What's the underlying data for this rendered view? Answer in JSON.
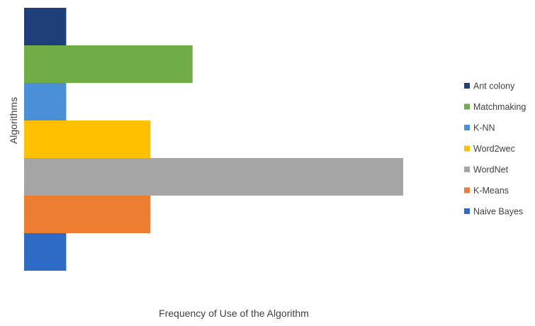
{
  "chart_data": {
    "type": "bar",
    "orientation": "horizontal",
    "title": "",
    "xlabel": "Frequency of Use of the Algorithm",
    "ylabel": "Algorithms",
    "xlim": [
      0,
      9
    ],
    "grid": false,
    "legend_position": "right",
    "series": [
      {
        "name": "Ant colony",
        "value": 1,
        "color": "#1f3f7a"
      },
      {
        "name": "Matchmaking",
        "value": 4,
        "color": "#70ad47"
      },
      {
        "name": "K-NN",
        "value": 1,
        "color": "#4a90d9"
      },
      {
        "name": "Word2wec",
        "value": 3,
        "color": "#ffc000"
      },
      {
        "name": "WordNet",
        "value": 9,
        "color": "#a5a5a5"
      },
      {
        "name": "K-Means",
        "value": 3,
        "color": "#ed7d31"
      },
      {
        "name": "Naive Bayes",
        "value": 1,
        "color": "#2e6bc6"
      }
    ]
  }
}
